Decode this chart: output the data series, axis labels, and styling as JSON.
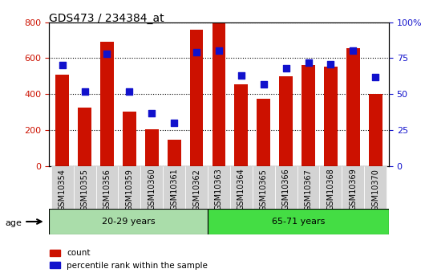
{
  "title": "GDS473 / 234384_at",
  "samples": [
    "GSM10354",
    "GSM10355",
    "GSM10356",
    "GSM10359",
    "GSM10360",
    "GSM10361",
    "GSM10362",
    "GSM10363",
    "GSM10364",
    "GSM10365",
    "GSM10366",
    "GSM10367",
    "GSM10368",
    "GSM10369",
    "GSM10370"
  ],
  "counts": [
    510,
    325,
    690,
    305,
    205,
    148,
    760,
    795,
    455,
    375,
    500,
    560,
    555,
    655,
    400
  ],
  "percentiles": [
    70,
    52,
    78,
    52,
    37,
    30,
    79,
    80,
    63,
    57,
    68,
    72,
    71,
    80,
    62
  ],
  "group1_label": "20-29 years",
  "group2_label": "65-71 years",
  "group1_count": 7,
  "group2_count": 8,
  "bar_color": "#CC1100",
  "dot_color": "#1111CC",
  "group1_bg": "#AADDAA",
  "group2_bg": "#44DD44",
  "tick_bg": "#D3D3D3",
  "ylim_left": [
    0,
    800
  ],
  "ylim_right": [
    0,
    100
  ],
  "yticks_left": [
    0,
    200,
    400,
    600,
    800
  ],
  "yticks_right": [
    0,
    25,
    50,
    75,
    100
  ],
  "legend_count_label": "count",
  "legend_pct_label": "percentile rank within the sample",
  "age_label": "age"
}
